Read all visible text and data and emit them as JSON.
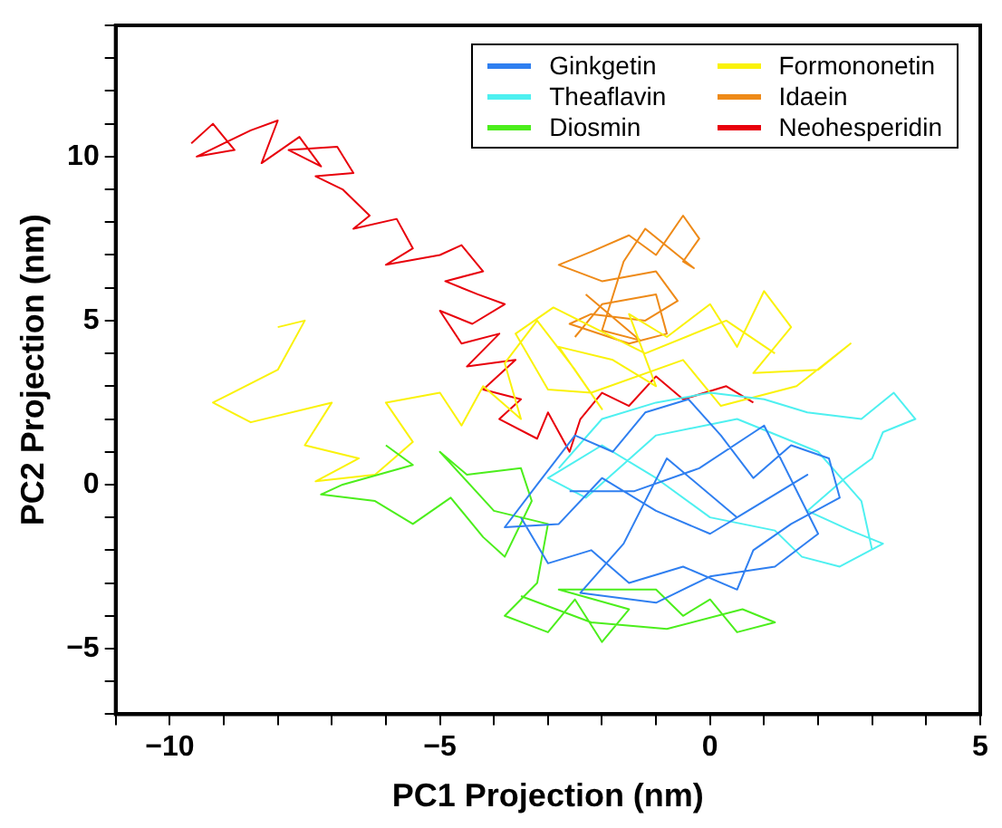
{
  "chart_data": {
    "type": "line",
    "xlabel": "PC1 Projection (nm)",
    "ylabel": "PC2 Projection (nm)",
    "legend": "top right",
    "marker": "none",
    "line_style": "solid",
    "grid": false,
    "xlim": [
      -11,
      5
    ],
    "ylim": [
      -7,
      14
    ],
    "xticks": [
      {
        "value": -11,
        "label": null
      },
      {
        "value": -10,
        "label": "−10"
      },
      {
        "value": -9,
        "label": null
      },
      {
        "value": -8,
        "label": null
      },
      {
        "value": -7,
        "label": null
      },
      {
        "value": -6,
        "label": null
      },
      {
        "value": -5,
        "label": "−5"
      },
      {
        "value": -4,
        "label": null
      },
      {
        "value": -3,
        "label": null
      },
      {
        "value": -2,
        "label": null
      },
      {
        "value": -1,
        "label": null
      },
      0,
      {
        "value": 1,
        "label": null
      },
      {
        "value": 2,
        "label": null
      },
      {
        "value": 3,
        "label": null
      },
      {
        "value": 4,
        "label": null
      },
      5
    ],
    "yticks": [
      {
        "value": -7,
        "label": null
      },
      {
        "value": -6,
        "label": null
      },
      {
        "value": -5,
        "label": "−5"
      },
      {
        "value": -4,
        "label": null
      },
      {
        "value": -3,
        "label": null
      },
      {
        "value": -2,
        "label": null
      },
      {
        "value": -1,
        "label": null
      },
      0,
      {
        "value": 1,
        "label": null
      },
      {
        "value": 2,
        "label": null
      },
      {
        "value": 3,
        "label": null
      },
      {
        "value": 4,
        "label": null
      },
      5,
      {
        "value": 6,
        "label": null
      },
      {
        "value": 7,
        "label": null
      },
      {
        "value": 8,
        "label": null
      },
      {
        "value": 9,
        "label": null
      },
      10,
      {
        "value": 11,
        "label": null
      },
      {
        "value": 12,
        "label": null
      },
      {
        "value": 13,
        "label": null
      },
      {
        "value": 14,
        "label": null
      }
    ],
    "series": [
      {
        "name": "Ginkgetin",
        "color": "#2f7ff0",
        "x": [
          -3.5,
          -3.0,
          -2.2,
          -1.5,
          -0.5,
          0.5,
          0.8,
          1.5,
          2.4,
          2.2,
          1.5,
          0.8,
          0.2,
          -0.4,
          -1.2,
          -1.8,
          -2.5,
          -3.2,
          -3.8,
          -2.8,
          -2.0,
          -1.0,
          0.0,
          1.0,
          1.8,
          0.5,
          -0.8,
          -1.6,
          -2.4,
          -1.0,
          0.0,
          1.2,
          2.0,
          1.0,
          -0.2,
          -1.4,
          -2.6
        ],
        "values": [
          -1.0,
          -2.4,
          -2.0,
          -3.0,
          -2.5,
          -3.2,
          -2.0,
          -1.2,
          -0.4,
          0.8,
          1.2,
          0.2,
          1.5,
          2.6,
          2.2,
          1.0,
          1.5,
          0.0,
          -1.3,
          -1.2,
          0.2,
          -0.8,
          -1.5,
          -0.5,
          0.3,
          -1.0,
          0.8,
          -1.8,
          -3.3,
          -3.6,
          -2.8,
          -2.5,
          -1.5,
          1.8,
          0.5,
          -0.2,
          -0.2
        ]
      },
      {
        "name": "Theaflavin",
        "color": "#4ef0f0",
        "x": [
          -2.8,
          -2.0,
          -1.0,
          0.0,
          1.0,
          1.8,
          2.8,
          3.4,
          3.8,
          3.2,
          3.0,
          2.5,
          1.8,
          2.6,
          3.2,
          2.4,
          1.7,
          1.2,
          0.0,
          -1.0,
          -2.0,
          -3.0,
          -2.3,
          -1.0,
          0.5,
          2.0,
          2.8,
          3.0
        ],
        "values": [
          0.5,
          2.0,
          2.5,
          2.8,
          2.6,
          2.2,
          2.0,
          2.8,
          2.0,
          1.6,
          0.8,
          0.2,
          -0.8,
          -1.4,
          -1.8,
          -2.5,
          -2.2,
          -1.4,
          -1.0,
          0.2,
          1.2,
          0.2,
          -0.4,
          1.5,
          2.0,
          1.0,
          -0.5,
          -2.0
        ]
      },
      {
        "name": "Diosmin",
        "color": "#4cee1c",
        "x": [
          -6.0,
          -5.5,
          -6.8,
          -7.2,
          -6.2,
          -5.5,
          -4.8,
          -4.2,
          -3.8,
          -3.3,
          -3.5,
          -4.5,
          -5.0,
          -4.0,
          -3.0,
          -3.2,
          -3.8,
          -3.0,
          -2.5,
          -2.0,
          -1.5,
          -2.8,
          -1.0,
          -0.5,
          0.0,
          0.5,
          1.2,
          0.6,
          -0.8,
          -2.2,
          -3.5
        ],
        "values": [
          1.2,
          0.6,
          0.0,
          -0.3,
          -0.5,
          -1.2,
          -0.4,
          -1.6,
          -2.2,
          -0.5,
          0.5,
          0.3,
          1.0,
          -0.8,
          -1.2,
          -3.0,
          -4.0,
          -4.5,
          -3.5,
          -4.8,
          -3.8,
          -3.2,
          -3.2,
          -4.0,
          -3.5,
          -4.5,
          -4.2,
          -3.8,
          -4.4,
          -4.2,
          -3.4
        ]
      },
      {
        "name": "Formononetin",
        "color": "#faf20a",
        "x": [
          -8.0,
          -7.5,
          -8.0,
          -9.2,
          -8.5,
          -7.0,
          -7.5,
          -6.5,
          -7.3,
          -6.2,
          -5.5,
          -6.0,
          -5.0,
          -4.6,
          -4.2,
          -3.5,
          -3.8,
          -3.2,
          -2.5,
          -2.0,
          -2.8,
          -1.8,
          -1.0,
          -1.5,
          -0.8,
          0.0,
          0.5,
          1.0,
          1.5,
          0.8,
          2.0,
          2.6,
          1.6,
          0.2,
          -0.5,
          -2.2,
          -3.0,
          -3.6,
          -2.9,
          -1.2,
          0.3,
          1.2
        ],
        "values": [
          4.8,
          5.0,
          3.5,
          2.5,
          1.9,
          2.5,
          1.2,
          0.8,
          0.1,
          0.3,
          1.3,
          2.5,
          2.8,
          1.8,
          3.0,
          2.0,
          3.7,
          5.0,
          3.5,
          2.3,
          4.2,
          3.8,
          3.0,
          5.2,
          4.5,
          5.5,
          4.2,
          5.9,
          4.8,
          3.4,
          3.5,
          4.3,
          3.0,
          2.4,
          3.8,
          2.8,
          2.9,
          4.6,
          5.4,
          4.0,
          5.0,
          4.0
        ]
      },
      {
        "name": "Idaein",
        "color": "#ee8a18",
        "x": [
          -2.5,
          -2.0,
          -1.0,
          -0.8,
          -1.5,
          -2.6,
          -2.2,
          -1.2,
          -0.6,
          -1.0,
          -2.0,
          -2.8,
          -2.2,
          -1.5,
          -1.0,
          -0.5,
          -0.2,
          -0.5,
          -0.3,
          -1.2,
          -1.6,
          -2.0,
          -1.3,
          -2.3
        ],
        "values": [
          4.5,
          5.5,
          5.8,
          4.6,
          4.3,
          4.9,
          5.2,
          5.0,
          5.6,
          6.5,
          6.2,
          6.7,
          7.1,
          7.6,
          7.0,
          8.2,
          7.5,
          6.8,
          6.6,
          7.8,
          6.8,
          4.7,
          4.4,
          5.8
        ]
      },
      {
        "name": "Neohesperidin",
        "color": "#e8000b",
        "x": [
          -9.6,
          -9.2,
          -8.8,
          -9.5,
          -8.5,
          -8.0,
          -8.3,
          -7.6,
          -7.2,
          -7.8,
          -6.9,
          -6.6,
          -7.3,
          -6.8,
          -6.3,
          -6.6,
          -5.8,
          -5.5,
          -6.0,
          -5.0,
          -4.6,
          -4.2,
          -4.9,
          -4.3,
          -3.8,
          -4.4,
          -5.0,
          -4.6,
          -3.9,
          -4.5,
          -3.6,
          -4.2,
          -3.5,
          -3.9,
          -3.2,
          -3.0,
          -2.6,
          -2.4,
          -2.0,
          -1.5,
          -1.0,
          -0.5,
          0.3,
          0.8
        ],
        "values": [
          10.4,
          11.0,
          10.2,
          10.0,
          10.8,
          11.1,
          9.8,
          10.6,
          9.7,
          10.2,
          10.3,
          9.5,
          9.4,
          9.0,
          8.2,
          7.8,
          8.1,
          7.2,
          6.7,
          7.0,
          7.3,
          6.5,
          6.2,
          5.8,
          5.5,
          4.9,
          5.3,
          4.3,
          4.6,
          3.6,
          3.8,
          2.9,
          2.6,
          2.0,
          1.4,
          2.2,
          1.0,
          2.0,
          2.8,
          2.4,
          3.3,
          2.6,
          3.0,
          2.5
        ]
      }
    ]
  }
}
